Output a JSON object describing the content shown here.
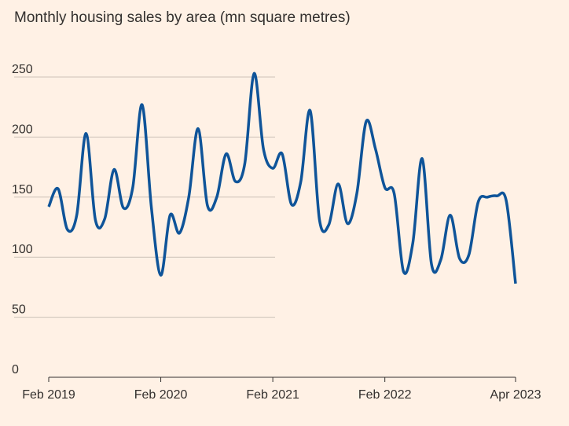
{
  "chart_data": {
    "type": "line",
    "title": "Monthly housing sales by area (mn square metres)",
    "xlabel": "",
    "ylabel": "",
    "ylim": [
      0,
      250
    ],
    "y_ticks": [
      0,
      50,
      100,
      150,
      200,
      250
    ],
    "x_ticks": [
      {
        "label": "Feb 2019",
        "x": "2019-02"
      },
      {
        "label": "Feb 2020",
        "x": "2020-02"
      },
      {
        "label": "Feb 2021",
        "x": "2021-02"
      },
      {
        "label": "Feb 2022",
        "x": "2022-02"
      },
      {
        "label": "Apr 2023",
        "x": "2023-04"
      }
    ],
    "grid": true,
    "line_color": "#0F5499",
    "series": [
      {
        "x": [
          "2019-02",
          "2019-03",
          "2019-04",
          "2019-05",
          "2019-06",
          "2019-07",
          "2019-08",
          "2019-09",
          "2019-10",
          "2019-11",
          "2019-12",
          "2020-01",
          "2020-02",
          "2020-03",
          "2020-04",
          "2020-05",
          "2020-06",
          "2020-07",
          "2020-08",
          "2020-09",
          "2020-10",
          "2020-11",
          "2020-12",
          "2021-01",
          "2021-02",
          "2021-03",
          "2021-04",
          "2021-05",
          "2021-06",
          "2021-07",
          "2021-08",
          "2021-09",
          "2021-10",
          "2021-11",
          "2021-12",
          "2022-01",
          "2022-02",
          "2022-03",
          "2022-04",
          "2022-05",
          "2022-06",
          "2022-07",
          "2022-08",
          "2022-09",
          "2022-10",
          "2022-11",
          "2022-12",
          "2023-01",
          "2023-02",
          "2023-03",
          "2023-04"
        ],
        "values": [
          142,
          157,
          123,
          135,
          203,
          131,
          132,
          173,
          141,
          158,
          227,
          141,
          85,
          135,
          120,
          150,
          207,
          143,
          150,
          186,
          163,
          178,
          253,
          190,
          174,
          186,
          144,
          163,
          222,
          131,
          127,
          161,
          128,
          153,
          213,
          190,
          158,
          153,
          88,
          112,
          182,
          94,
          98,
          135,
          99,
          102,
          146,
          150,
          151,
          147,
          78
        ]
      }
    ]
  }
}
